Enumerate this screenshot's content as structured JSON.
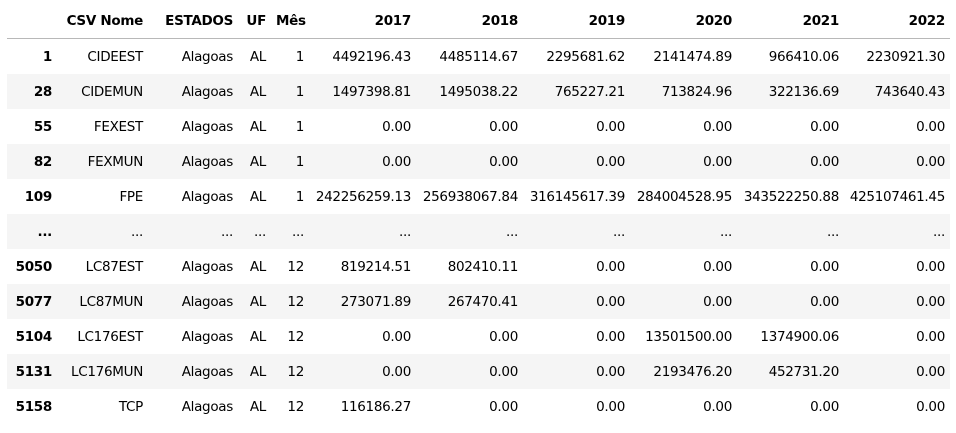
{
  "columns": [
    "",
    "CSV Nome",
    "ESTADOS",
    "UF",
    "Mês",
    "2017",
    "2018",
    "2019",
    "2020",
    "2021",
    "2022"
  ],
  "rows": [
    [
      "1",
      "CIDEEST",
      "Alagoas",
      "AL",
      "1",
      "4492196.43",
      "4485114.67",
      "2295681.62",
      "2141474.89",
      "966410.06",
      "2230921.30"
    ],
    [
      "28",
      "CIDEMUN",
      "Alagoas",
      "AL",
      "1",
      "1497398.81",
      "1495038.22",
      "765227.21",
      "713824.96",
      "322136.69",
      "743640.43"
    ],
    [
      "55",
      "FEXEST",
      "Alagoas",
      "AL",
      "1",
      "0.00",
      "0.00",
      "0.00",
      "0.00",
      "0.00",
      "0.00"
    ],
    [
      "82",
      "FEXMUN",
      "Alagoas",
      "AL",
      "1",
      "0.00",
      "0.00",
      "0.00",
      "0.00",
      "0.00",
      "0.00"
    ],
    [
      "109",
      "FPE",
      "Alagoas",
      "AL",
      "1",
      "242256259.13",
      "256938067.84",
      "316145617.39",
      "284004528.95",
      "343522250.88",
      "425107461.45"
    ],
    [
      "...",
      "...",
      "...",
      "...",
      "...",
      "...",
      "...",
      "...",
      "...",
      "...",
      "..."
    ],
    [
      "5050",
      "LC87EST",
      "Alagoas",
      "AL",
      "12",
      "819214.51",
      "802410.11",
      "0.00",
      "0.00",
      "0.00",
      "0.00"
    ],
    [
      "5077",
      "LC87MUN",
      "Alagoas",
      "AL",
      "12",
      "273071.89",
      "267470.41",
      "0.00",
      "0.00",
      "0.00",
      "0.00"
    ],
    [
      "5104",
      "LC176EST",
      "Alagoas",
      "AL",
      "12",
      "0.00",
      "0.00",
      "0.00",
      "13501500.00",
      "1374900.06",
      "0.00"
    ],
    [
      "5131",
      "LC176MUN",
      "Alagoas",
      "AL",
      "12",
      "0.00",
      "0.00",
      "0.00",
      "2193476.20",
      "452731.20",
      "0.00"
    ],
    [
      "5158",
      "TCP",
      "Alagoas",
      "AL",
      "12",
      "116186.27",
      "0.00",
      "0.00",
      "0.00",
      "0.00",
      "0.00"
    ]
  ]
}
